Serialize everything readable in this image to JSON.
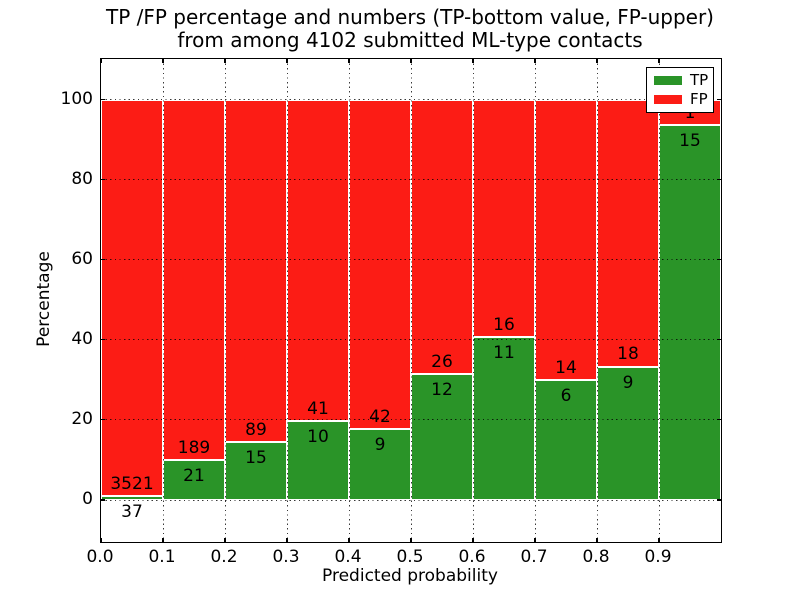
{
  "title": {
    "line1": "TP /FP percentage and numbers (TP-bottom value, FP-upper)",
    "line2": "from among 4102 submitted ML-type contacts"
  },
  "x_axis": {
    "label": "Predicted probability",
    "ticks": [
      "0.0",
      "0.1",
      "0.2",
      "0.3",
      "0.4",
      "0.5",
      "0.6",
      "0.7",
      "0.8",
      "0.9"
    ]
  },
  "y_axis": {
    "label": "Percentage",
    "ticks": [
      "0",
      "20",
      "40",
      "60",
      "80",
      "100"
    ]
  },
  "legend": {
    "items": [
      {
        "label": "TP",
        "color": "#2a9428"
      },
      {
        "label": "FP",
        "color": "#fc1c15"
      }
    ]
  },
  "chart_data": {
    "type": "bar",
    "stacked": true,
    "title": "TP /FP percentage and numbers (TP-bottom value, FP-upper) from among 4102 submitted ML-type contacts",
    "xlabel": "Predicted probability",
    "ylabel": "Percentage",
    "xlim": [
      0.0,
      1.0
    ],
    "ylim": [
      -10,
      110
    ],
    "yticks": [
      0,
      20,
      40,
      60,
      80,
      100
    ],
    "xticks": [
      0.0,
      0.1,
      0.2,
      0.3,
      0.4,
      0.5,
      0.6,
      0.7,
      0.8,
      0.9
    ],
    "grid": "dotted black, on",
    "legend_position": "upper right",
    "categories": [
      "0.0-0.1",
      "0.1-0.2",
      "0.2-0.3",
      "0.3-0.4",
      "0.4-0.5",
      "0.5-0.6",
      "0.6-0.7",
      "0.7-0.8",
      "0.8-0.9",
      "0.9-1.0"
    ],
    "series": [
      {
        "name": "TP",
        "color": "#2a9428",
        "counts": [
          37,
          21,
          15,
          10,
          9,
          12,
          11,
          6,
          9,
          15
        ]
      },
      {
        "name": "FP",
        "color": "#fc1c15",
        "counts": [
          3521,
          189,
          89,
          41,
          42,
          26,
          16,
          14,
          18,
          1
        ]
      }
    ],
    "tp_percent_of_bin": [
      1.0,
      10.0,
      14.4,
      19.6,
      17.6,
      31.6,
      40.7,
      30.0,
      33.3,
      93.8
    ],
    "bars_stack_to_percent": 100,
    "total_contacts": 4102
  }
}
